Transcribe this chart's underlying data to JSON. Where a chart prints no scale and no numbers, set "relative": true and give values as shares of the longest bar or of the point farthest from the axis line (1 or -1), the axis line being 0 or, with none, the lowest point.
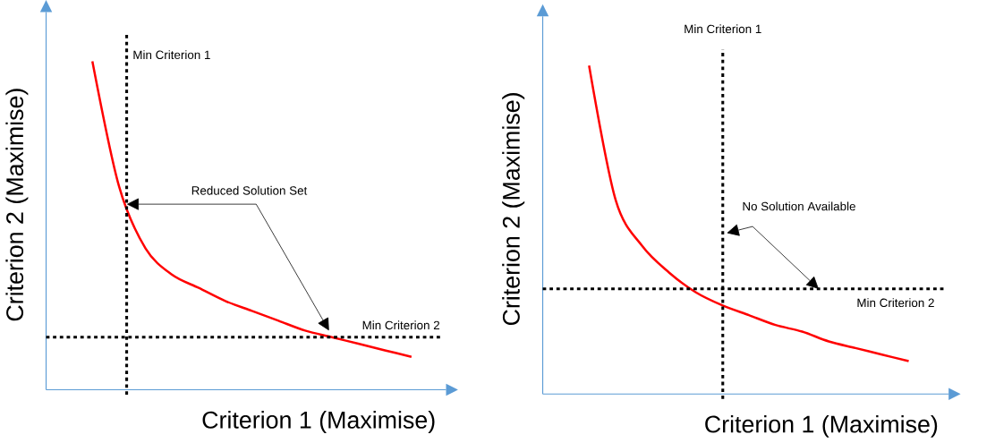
{
  "chart_data": [
    {
      "type": "line",
      "relative": true,
      "xlabel": "Criterion 1 (Maximise)",
      "ylabel": "Criterion 2 (Maximise)",
      "categories": [
        null,
        null,
        null,
        null,
        null,
        null,
        null,
        null,
        null,
        null,
        null,
        null,
        null
      ],
      "series": [
        {
          "color": "#ff0000",
          "values": [
            1,
            0.62,
            0.43,
            0.35,
            0.31,
            0.27,
            0.24,
            0.21,
            0.18,
            0.16,
            0.14,
            0.12,
            0.1
          ]
        }
      ],
      "ref_lines": [
        {
          "axis": "y",
          "value": 0.16,
          "label": "Min Criterion 2",
          "color": "#000000",
          "line_style": "dotted"
        }
      ],
      "annotations": [
        "Min Criterion 1",
        "Reduced Solution Set"
      ]
    },
    {
      "type": "line",
      "relative": true,
      "xlabel": "Criterion 1 (Maximise)",
      "ylabel": "Criterion 2 (Maximise)",
      "categories": [
        null,
        null,
        null,
        null,
        null,
        null,
        null,
        null,
        null,
        null,
        null,
        null,
        null
      ],
      "series": [
        {
          "color": "#ff0000",
          "values": [
            1,
            0.59,
            0.45,
            0.37,
            0.31,
            0.27,
            0.24,
            0.21,
            0.19,
            0.16,
            0.14,
            0.12,
            0.1
          ]
        }
      ],
      "ref_lines": [
        {
          "axis": "y",
          "value": 0.32,
          "label": "Min Criterion 2",
          "color": "#000000",
          "line_style": "dotted"
        }
      ],
      "annotations": [
        "Min Criterion 1",
        "No Solution Available"
      ]
    }
  ]
}
